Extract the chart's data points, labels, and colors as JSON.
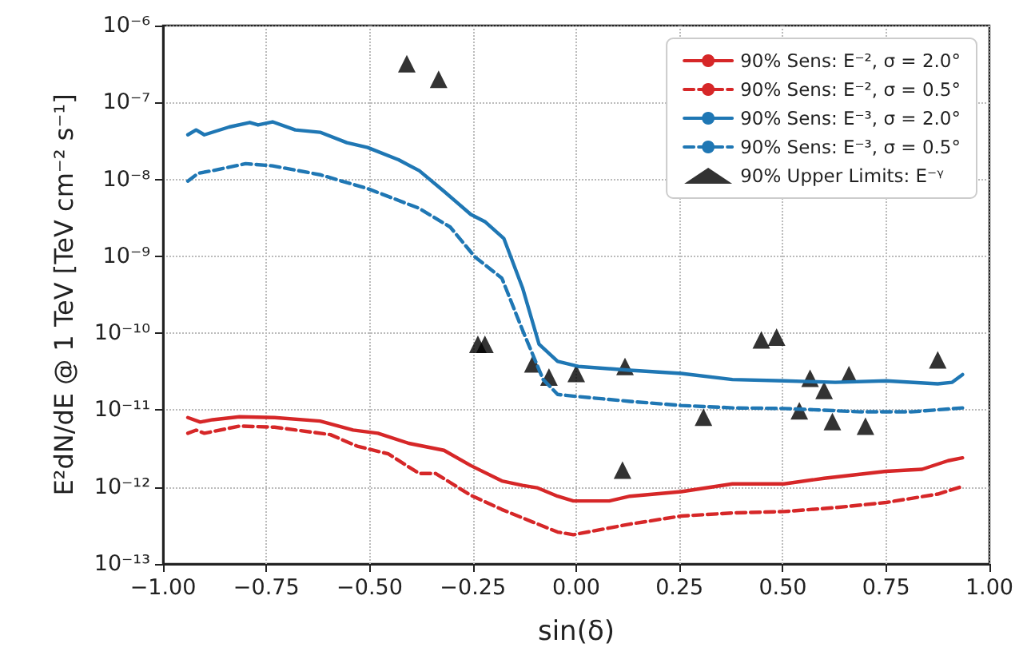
{
  "chart_data": {
    "type": "line",
    "xlabel": "sin(δ)",
    "ylabel": "E²dN/dE @ 1 TeV [TeV cm⁻² s⁻¹]",
    "log": "y",
    "grid": true,
    "legend": "top right",
    "xlim": [
      -1,
      1
    ],
    "xticks": [
      {
        "value": -1,
        "label": "−1.00"
      },
      {
        "value": -0.75,
        "label": "−0.75"
      },
      {
        "value": -0.5,
        "label": "−0.50"
      },
      {
        "value": -0.25,
        "label": "−0.25"
      },
      {
        "value": 0,
        "label": "0.00"
      },
      {
        "value": 0.25,
        "label": "0.25"
      },
      {
        "value": 0.5,
        "label": "0.50"
      },
      {
        "value": 0.75,
        "label": "0.75"
      },
      {
        "value": 1,
        "label": "1.00"
      }
    ],
    "ylim": [
      1e-13,
      1e-06
    ],
    "yticks": [
      {
        "value": 1e-13,
        "label": "10⁻¹³"
      },
      {
        "value": 1e-12,
        "label": "10⁻¹²"
      },
      {
        "value": 1e-11,
        "label": "10⁻¹¹"
      },
      {
        "value": 1e-10,
        "label": "10⁻¹⁰"
      },
      {
        "value": 1e-09,
        "label": "10⁻⁹"
      },
      {
        "value": 1e-08,
        "label": "10⁻⁸"
      },
      {
        "value": 1e-07,
        "label": "10⁻⁷"
      },
      {
        "value": 1e-06,
        "label": "10⁻⁶"
      }
    ],
    "series": [
      {
        "name": "90% Sens: E⁻², σ = 2.0°",
        "color": "#d62728",
        "line_style": "solid",
        "x": [
          -0.94,
          -0.91,
          -0.88,
          -0.815,
          -0.73,
          -0.62,
          -0.54,
          -0.48,
          -0.405,
          -0.32,
          -0.255,
          -0.18,
          -0.13,
          -0.095,
          -0.045,
          -0.007,
          0.08,
          0.13,
          0.254,
          0.378,
          0.503,
          0.6,
          0.75,
          0.837,
          0.9,
          0.935
        ],
        "values": [
          8e-12,
          7e-12,
          7.5e-12,
          8.2e-12,
          8e-12,
          7.2e-12,
          5.5e-12,
          5e-12,
          3.7e-12,
          3e-12,
          1.9e-12,
          1.2e-12,
          1.05e-12,
          9.8e-13,
          7.6e-13,
          6.6e-13,
          6.6e-13,
          7.6e-13,
          8.7e-13,
          1.1e-12,
          1.1e-12,
          1.3e-12,
          1.6e-12,
          1.7e-12,
          2.2e-12,
          2.4e-12
        ]
      },
      {
        "name": "90% Sens: E⁻², σ = 0.5°",
        "color": "#d62728",
        "line_style": "dashed",
        "x": [
          -0.94,
          -0.92,
          -0.9,
          -0.815,
          -0.73,
          -0.595,
          -0.53,
          -0.455,
          -0.38,
          -0.34,
          -0.255,
          -0.18,
          -0.105,
          -0.045,
          -0.007,
          0.13,
          0.254,
          0.378,
          0.503,
          0.627,
          0.75,
          0.875,
          0.93
        ],
        "values": [
          5e-12,
          5.5e-12,
          5e-12,
          6.2e-12,
          6e-12,
          4.8e-12,
          3.4e-12,
          2.7e-12,
          1.5e-12,
          1.5e-12,
          7.8e-13,
          5.1e-13,
          3.5e-13,
          2.6e-13,
          2.4e-13,
          3.3e-13,
          4.2e-13,
          4.6e-13,
          4.8e-13,
          5.4e-13,
          6.3e-13,
          8.1e-13,
          1e-12
        ]
      },
      {
        "name": "90% Sens: E⁻³, σ = 2.0°",
        "color": "#1f77b4",
        "line_style": "solid",
        "x": [
          -0.94,
          -0.92,
          -0.9,
          -0.84,
          -0.79,
          -0.77,
          -0.735,
          -0.68,
          -0.62,
          -0.555,
          -0.505,
          -0.43,
          -0.38,
          -0.32,
          -0.255,
          -0.22,
          -0.175,
          -0.13,
          -0.09,
          -0.045,
          0.005,
          0.13,
          0.254,
          0.378,
          0.503,
          0.627,
          0.75,
          0.875,
          0.91,
          0.935
        ],
        "values": [
          3.8e-08,
          4.4e-08,
          3.8e-08,
          4.8e-08,
          5.5e-08,
          5.1e-08,
          5.6e-08,
          4.4e-08,
          4.1e-08,
          3e-08,
          2.6e-08,
          1.8e-08,
          1.3e-08,
          7e-09,
          3.5e-09,
          2.8e-09,
          1.7e-09,
          3.9e-10,
          7.2e-11,
          4.3e-11,
          3.7e-11,
          3.3e-11,
          3e-11,
          2.5e-11,
          2.4e-11,
          2.3e-11,
          2.4e-11,
          2.2e-11,
          2.3e-11,
          2.9e-11
        ]
      },
      {
        "name": "90% Sens: E⁻³, σ = 0.5°",
        "color": "#1f77b4",
        "line_style": "dashed",
        "x": [
          -0.94,
          -0.915,
          -0.88,
          -0.8,
          -0.735,
          -0.62,
          -0.505,
          -0.38,
          -0.305,
          -0.245,
          -0.18,
          -0.13,
          -0.08,
          -0.045,
          0.005,
          0.13,
          0.254,
          0.378,
          0.503,
          0.69,
          0.81,
          0.935
        ],
        "values": [
          9.5e-09,
          1.2e-08,
          1.3e-08,
          1.6e-08,
          1.5e-08,
          1.15e-08,
          7.6e-09,
          4.2e-09,
          2.4e-09,
          9.8e-10,
          5.2e-10,
          1.1e-10,
          2.5e-11,
          1.6e-11,
          1.5e-11,
          1.3e-11,
          1.15e-11,
          1.07e-11,
          1.05e-11,
          9.5e-12,
          9.5e-12,
          1.07e-11
        ]
      },
      {
        "name": "90% Upper Limits: E⁻ᵞ",
        "type": "scatter",
        "marker": "triangle",
        "color": "#000000",
        "x": [
          -0.41,
          -0.333,
          -0.238,
          -0.221,
          -0.105,
          -0.066,
          0,
          0.112,
          0.118,
          0.308,
          0.448,
          0.485,
          0.54,
          0.566,
          0.6,
          0.62,
          0.66,
          0.7,
          0.875
        ],
        "values": [
          3.2e-07,
          2e-07,
          7.2e-11,
          7.2e-11,
          4e-11,
          2.7e-11,
          3e-11,
          1.66e-12,
          3.7e-11,
          8.1e-12,
          8.2e-11,
          8.9e-11,
          9.8e-12,
          2.6e-11,
          1.8e-11,
          7.1e-12,
          2.9e-11,
          6.2e-12,
          4.5e-11
        ]
      }
    ]
  }
}
